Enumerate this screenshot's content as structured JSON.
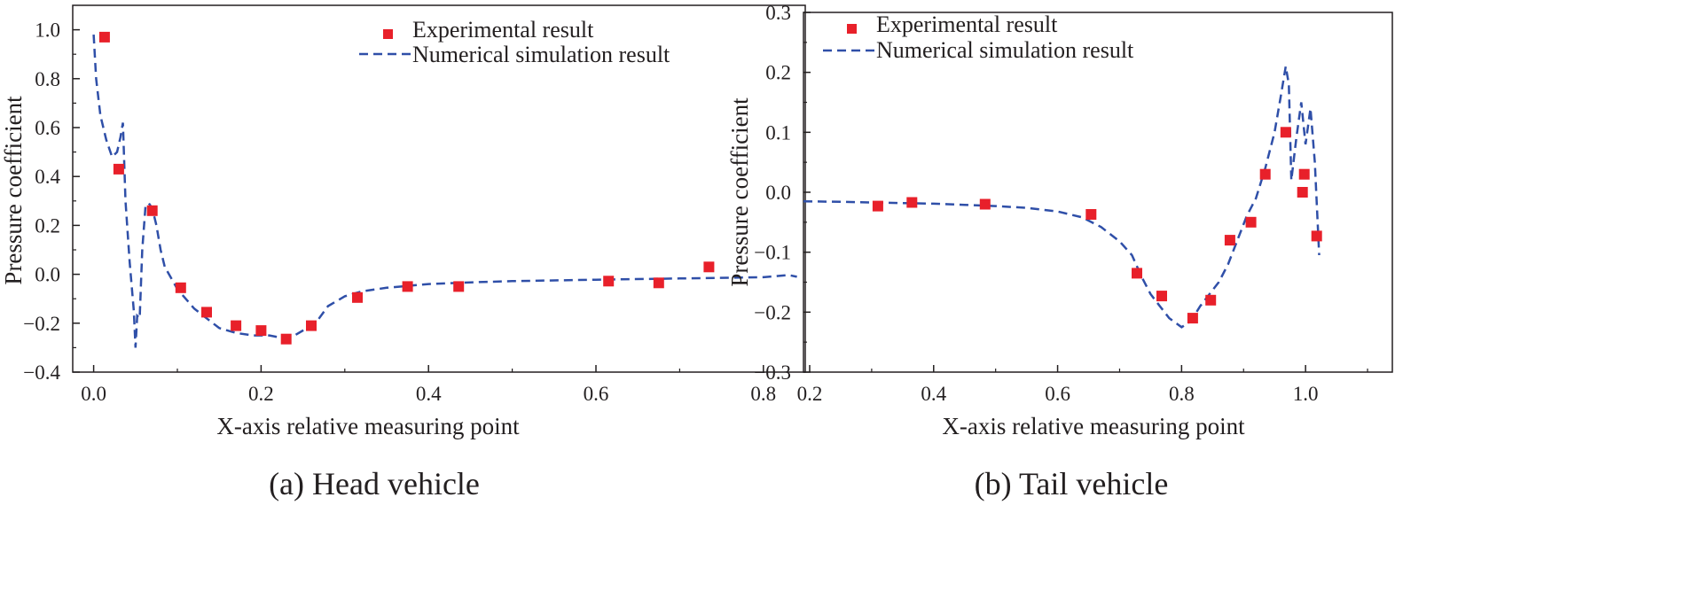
{
  "colors": {
    "experimental": "#e8202a",
    "simulation": "#2f4fa8",
    "axis": "#231f20"
  },
  "chart_data": [
    {
      "type": "scatter",
      "caption": "(a) Head vehicle",
      "xlabel": "X-axis relative measuring point",
      "ylabel": "Pressure coefficient",
      "xlim": [
        -0.025,
        0.85
      ],
      "ylim": [
        -0.4,
        1.1
      ],
      "xticks": [
        0.0,
        0.2,
        0.4,
        0.6,
        0.8
      ],
      "yticks": [
        -0.4,
        -0.2,
        0.0,
        0.2,
        0.4,
        0.6,
        0.8,
        1.0
      ],
      "xtick_labels": [
        "0.0",
        "0.2",
        "0.4",
        "0.6",
        "0.8"
      ],
      "ytick_labels": [
        "−0.4",
        "−0.2",
        "0.0",
        "0.2",
        "0.4",
        "0.6",
        "0.8",
        "1.0"
      ],
      "legend": {
        "position": "top-right",
        "entries": [
          "Experimental result",
          "Numerical simulation result"
        ]
      },
      "series": [
        {
          "name": "Experimental result",
          "style": "markers",
          "x": [
            0.013,
            0.03,
            0.07,
            0.104,
            0.135,
            0.17,
            0.2,
            0.23,
            0.26,
            0.315,
            0.375,
            0.436,
            0.615,
            0.675,
            0.735
          ],
          "y": [
            0.97,
            0.43,
            0.26,
            -0.055,
            -0.155,
            -0.21,
            -0.23,
            -0.265,
            -0.21,
            -0.095,
            -0.05,
            -0.05,
            -0.028,
            -0.035,
            0.03
          ]
        },
        {
          "name": "Numerical simulation result",
          "style": "dashed",
          "x": [
            0.0,
            0.003,
            0.008,
            0.015,
            0.022,
            0.028,
            0.032,
            0.035,
            0.038,
            0.043,
            0.048,
            0.05,
            0.052,
            0.055,
            0.058,
            0.062,
            0.066,
            0.07,
            0.075,
            0.08,
            0.085,
            0.09,
            0.095,
            0.1,
            0.11,
            0.12,
            0.135,
            0.15,
            0.17,
            0.19,
            0.21,
            0.225,
            0.24,
            0.255,
            0.265,
            0.28,
            0.3,
            0.32,
            0.35,
            0.4,
            0.45,
            0.5,
            0.6,
            0.7,
            0.8,
            0.83,
            0.84
          ],
          "y": [
            0.98,
            0.8,
            0.65,
            0.55,
            0.48,
            0.5,
            0.56,
            0.62,
            0.3,
            0.05,
            -0.15,
            -0.3,
            -0.17,
            -0.18,
            0.1,
            0.28,
            0.29,
            0.27,
            0.2,
            0.1,
            0.03,
            0.0,
            -0.03,
            -0.06,
            -0.1,
            -0.14,
            -0.18,
            -0.22,
            -0.24,
            -0.25,
            -0.25,
            -0.26,
            -0.25,
            -0.22,
            -0.2,
            -0.13,
            -0.09,
            -0.07,
            -0.055,
            -0.04,
            -0.033,
            -0.028,
            -0.022,
            -0.017,
            -0.012,
            -0.003,
            -0.01
          ]
        }
      ]
    },
    {
      "type": "scatter",
      "caption": "(b) Tail vehicle",
      "xlabel": "X-axis relative measuring point",
      "ylabel": "Pressure coefficient",
      "xlim": [
        0.19,
        1.14
      ],
      "ylim": [
        -0.3,
        0.3
      ],
      "xticks": [
        0.2,
        0.4,
        0.6,
        0.8,
        1.0
      ],
      "yticks": [
        -0.3,
        -0.2,
        -0.1,
        0.0,
        0.1,
        0.2,
        0.3
      ],
      "xtick_labels": [
        "0.2",
        "0.4",
        "0.6",
        "0.8",
        "1.0"
      ],
      "ytick_labels": [
        "−0.3",
        "−0.2",
        "−0.1",
        "0.0",
        "0.1",
        "0.2",
        "0.3"
      ],
      "legend": {
        "position": "top-left",
        "entries": [
          "Experimental result",
          "Numerical simulation result"
        ]
      },
      "series": [
        {
          "name": "Experimental result",
          "style": "markers",
          "x": [
            0.31,
            0.365,
            0.483,
            0.654,
            0.728,
            0.768,
            0.818,
            0.847,
            0.878,
            0.912,
            0.935,
            0.968,
            0.995,
            0.998,
            1.018
          ],
          "y": [
            -0.023,
            -0.017,
            -0.02,
            -0.037,
            -0.135,
            -0.173,
            -0.21,
            -0.18,
            -0.08,
            -0.05,
            0.03,
            0.1,
            0.0,
            0.03,
            -0.073
          ]
        },
        {
          "name": "Numerical simulation result",
          "style": "dashed",
          "x": [
            0.19,
            0.25,
            0.3,
            0.35,
            0.4,
            0.45,
            0.5,
            0.55,
            0.6,
            0.64,
            0.67,
            0.7,
            0.72,
            0.735,
            0.75,
            0.765,
            0.78,
            0.8,
            0.815,
            0.83,
            0.845,
            0.86,
            0.875,
            0.89,
            0.905,
            0.92,
            0.935,
            0.95,
            0.96,
            0.968,
            0.973,
            0.977,
            0.985,
            0.993,
            1.0,
            1.008,
            1.015,
            1.022
          ],
          "y": [
            -0.015,
            -0.016,
            -0.017,
            -0.018,
            -0.019,
            -0.021,
            -0.023,
            -0.026,
            -0.032,
            -0.042,
            -0.058,
            -0.082,
            -0.105,
            -0.14,
            -0.17,
            -0.19,
            -0.21,
            -0.225,
            -0.215,
            -0.19,
            -0.17,
            -0.15,
            -0.12,
            -0.08,
            -0.04,
            -0.01,
            0.04,
            0.1,
            0.16,
            0.21,
            0.18,
            0.02,
            0.09,
            0.15,
            0.08,
            0.14,
            0.05,
            -0.105
          ]
        }
      ]
    }
  ]
}
